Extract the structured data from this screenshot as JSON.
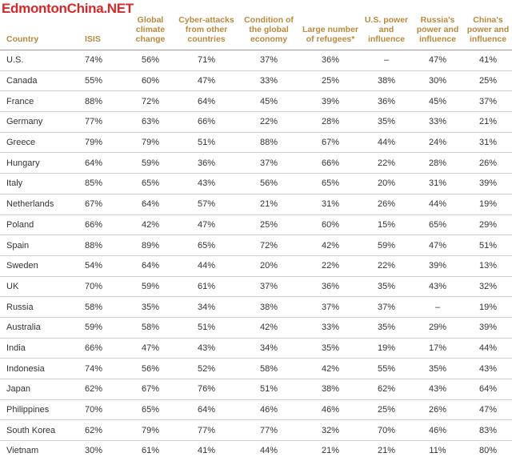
{
  "watermark": "EdmontonChina.NET",
  "chart_data": {
    "type": "table",
    "columns": [
      "Country",
      "ISIS",
      "Global climate change",
      "Cyber-attacks from other countries",
      "Condition of the global economy",
      "Large number of refugees*",
      "U.S. power and influence",
      "Russia's power and influence",
      "China's power and influence"
    ],
    "rows": [
      {
        "country": "U.S.",
        "values": [
          "74%",
          "56%",
          "71%",
          "37%",
          "36%",
          "–",
          "47%",
          "41%"
        ]
      },
      {
        "country": "Canada",
        "values": [
          "55%",
          "60%",
          "47%",
          "33%",
          "25%",
          "38%",
          "30%",
          "25%"
        ]
      },
      {
        "country": "France",
        "values": [
          "88%",
          "72%",
          "64%",
          "45%",
          "39%",
          "36%",
          "45%",
          "37%"
        ]
      },
      {
        "country": "Germany",
        "values": [
          "77%",
          "63%",
          "66%",
          "22%",
          "28%",
          "35%",
          "33%",
          "21%"
        ]
      },
      {
        "country": "Greece",
        "values": [
          "79%",
          "79%",
          "51%",
          "88%",
          "67%",
          "44%",
          "24%",
          "31%"
        ]
      },
      {
        "country": "Hungary",
        "values": [
          "64%",
          "59%",
          "36%",
          "37%",
          "66%",
          "22%",
          "28%",
          "26%"
        ]
      },
      {
        "country": "Italy",
        "values": [
          "85%",
          "65%",
          "43%",
          "56%",
          "65%",
          "20%",
          "31%",
          "39%"
        ]
      },
      {
        "country": "Netherlands",
        "values": [
          "67%",
          "64%",
          "57%",
          "21%",
          "31%",
          "26%",
          "44%",
          "19%"
        ]
      },
      {
        "country": "Poland",
        "values": [
          "66%",
          "42%",
          "47%",
          "25%",
          "60%",
          "15%",
          "65%",
          "29%"
        ]
      },
      {
        "country": "Spain",
        "values": [
          "88%",
          "89%",
          "65%",
          "72%",
          "42%",
          "59%",
          "47%",
          "51%"
        ]
      },
      {
        "country": "Sweden",
        "values": [
          "54%",
          "64%",
          "44%",
          "20%",
          "22%",
          "22%",
          "39%",
          "13%"
        ]
      },
      {
        "country": "UK",
        "values": [
          "70%",
          "59%",
          "61%",
          "37%",
          "36%",
          "35%",
          "43%",
          "32%"
        ]
      },
      {
        "country": "Russia",
        "values": [
          "58%",
          "35%",
          "34%",
          "38%",
          "37%",
          "37%",
          "–",
          "19%"
        ]
      },
      {
        "country": "Australia",
        "values": [
          "59%",
          "58%",
          "51%",
          "42%",
          "33%",
          "35%",
          "29%",
          "39%"
        ]
      },
      {
        "country": "India",
        "values": [
          "66%",
          "47%",
          "43%",
          "34%",
          "35%",
          "19%",
          "17%",
          "44%"
        ]
      },
      {
        "country": "Indonesia",
        "values": [
          "74%",
          "56%",
          "52%",
          "58%",
          "42%",
          "55%",
          "35%",
          "43%"
        ]
      },
      {
        "country": "Japan",
        "values": [
          "62%",
          "67%",
          "76%",
          "51%",
          "38%",
          "62%",
          "43%",
          "64%"
        ]
      },
      {
        "country": "Philippines",
        "values": [
          "70%",
          "65%",
          "64%",
          "46%",
          "46%",
          "25%",
          "26%",
          "47%"
        ]
      },
      {
        "country": "South Korea",
        "values": [
          "62%",
          "79%",
          "77%",
          "77%",
          "32%",
          "70%",
          "46%",
          "83%"
        ]
      },
      {
        "country": "Vietnam",
        "values": [
          "30%",
          "61%",
          "41%",
          "44%",
          "21%",
          "21%",
          "11%",
          "80%"
        ]
      }
    ]
  }
}
